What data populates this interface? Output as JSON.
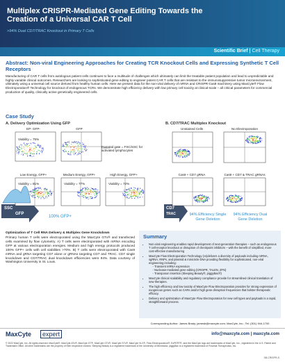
{
  "header": {
    "title": "Multiplex CRISPR-Mediated Gene Editing Towards the Creation of a Universal CAR T Cell",
    "subtitle": ">94% Dual CD7/TRAC Knockout in Primary T Cells",
    "tag": "Scientific Brief",
    "category": "Cell Therapy"
  },
  "abstract": {
    "heading": "Abstract: Non-viral Engineering Approaches for Creating TCR Knockout Cells and Expressing Synthetic T Cell Receptors",
    "text": "Manufacturing of CAR T cells from autologous patient cells continues to face a multitude of challenges which ultimately can limit the treatable patient population and lead to unpredictable and highly variable clinical outcomes. Researchers are looking to sophisticated gene editing to engineer potent CAR T cells that are resistant to the immunosuppressive tumor microenvironment, ultimately using a universal cell source derived from healthy human cells. Here we present data for the non-viral delivery of mRNA and CRISPR-Cas9 machinery using MaxCyte® Flow Electroporation® Technology for knockout of endogenous TCRs. We demonstrate high efficiency delivery with low primary cell toxicity at clinical-scale – all critical parameters for commercial production of quality, clinically active genetically engineered cells."
  },
  "case_study": {
    "heading": "Case Study",
    "panel_a": {
      "title": "A. Delivery Optimization Using GFP",
      "plots": [
        {
          "label": "EP- GFP-",
          "note": "Viability = 75%"
        },
        {
          "label": "GFP",
          "note": ""
        },
        {
          "label": "Low Energy, GFP+",
          "note": "Viability = 81%"
        },
        {
          "label": "Medium Energy, GFP+",
          "note": "Viability = 77%"
        },
        {
          "label": "High Energy, GFP+",
          "note": "Viability = 72%"
        }
      ],
      "gate_note": "Parental gate = FSC/SSC for activated lymphocytes",
      "axis_y": "SSC",
      "axis_x": "GFP",
      "result": "100% GFP+"
    },
    "panel_b": {
      "title": "B. CD7/TRAC Multiplex Knockout",
      "plots": [
        {
          "label": "Unstained Cells"
        },
        {
          "label": "No Electroporation"
        },
        {
          "label": "Cas9 + CD7 gRNA"
        },
        {
          "label": "Cas9 + CD7 & TRAC gRNAs"
        }
      ],
      "axis_y": "CD7",
      "axis_x": "TRAC",
      "result_single": "94% Efficiency Single Gene Deletion",
      "result_dual": "94% Efficiency Dual Gene Deletion"
    }
  },
  "optimization": {
    "heading": "Optimization of T Cell RNA Delivery & Multiplex Gene Knockdown",
    "text": "Primary human T cells were electroporated using the MaxCyte GTx® and transfected cells examined by flow cytometry. A) T cells were electroporated with mRNA encoding GFP at various electroporation energies. Medium and high energy protocols produced 100% GFP+ cells with cell viabilities >70%. B) T cells were electroporated with Cas9 mRNA and gRNA targeting CD7 alone or gRNAs targeting CD7 and TRAC. CD7 single knockdown and CD7/TRAC dual knockdown efficiencies were 94%. Data courtesy of Washington University in St. Louis."
  },
  "summary": {
    "heading": "Summary",
    "bullets": [
      "Non-viral engineering enables rapid development of next-generation therapies – such as endogenous T cell-receptor knockout or disruption of checkpoint inhibitors – with the benefit of simplified, more cost-effective manufacturing",
      "MaxCyte Flow Electroporation Technology (cs)delivers a diversity of payloads including mRNA, sgRNA, RNPs, and plasmid & minicircle DNA providing flexibility for sophisticated, non-viral engineering including:",
      "MaxCyte clinical scalability and regulatory compliance provide for streamlined clinical translation of new therapies.",
      "The high efficiency and low toxicity of MaxCyte Flow Electroporation provides for strong expression of exogenous genes such as CARs and/or high gene disruption frequencies that bolster therapeutic efficacy.",
      "Delivery and optimization of MaxCyte Flow Electroporation for new cell types and payloads is a rapid, straightforward process."
    ],
    "sub_bullets": [
      "Transient mRNA expression",
      "Nuclease-mediated gene editing (CRISPR, TALEN, ZFN)",
      "Transposon insertion (Sleeping Beauty®, piggyBac®)"
    ]
  },
  "author": "Corresponding Author: James Brady; jamesb@maxcyte.com; MaxCyte, Inc.; Tel: (301) 944-1700",
  "footer": {
    "logo1": "MaxCyte",
    "logo2": "expert",
    "contact": "info@maxcyte.com | maxcyte.com",
    "legal": "© 2022 MaxCyte, Inc. All rights reserved. MaxCyte®, MaxCyte ATx®, MaxCyte GT®, MaxCyte GTx®, MaxCyte STx®, MaxCyte VLX®, Flow Electroporation®, ExPERT®, and the MaxCyte logo are trademarks of MaxCyte, Inc., registered in the U.S. Patent and Trademark Office. All other trademarks are the property of their respective owners. Sleeping Beauty is a registered trademark of the University of Minnesota. piggyBac is a registered trademark of Poseida Therapeutics, Inc.",
    "code": "SB-CRISPR-S"
  }
}
